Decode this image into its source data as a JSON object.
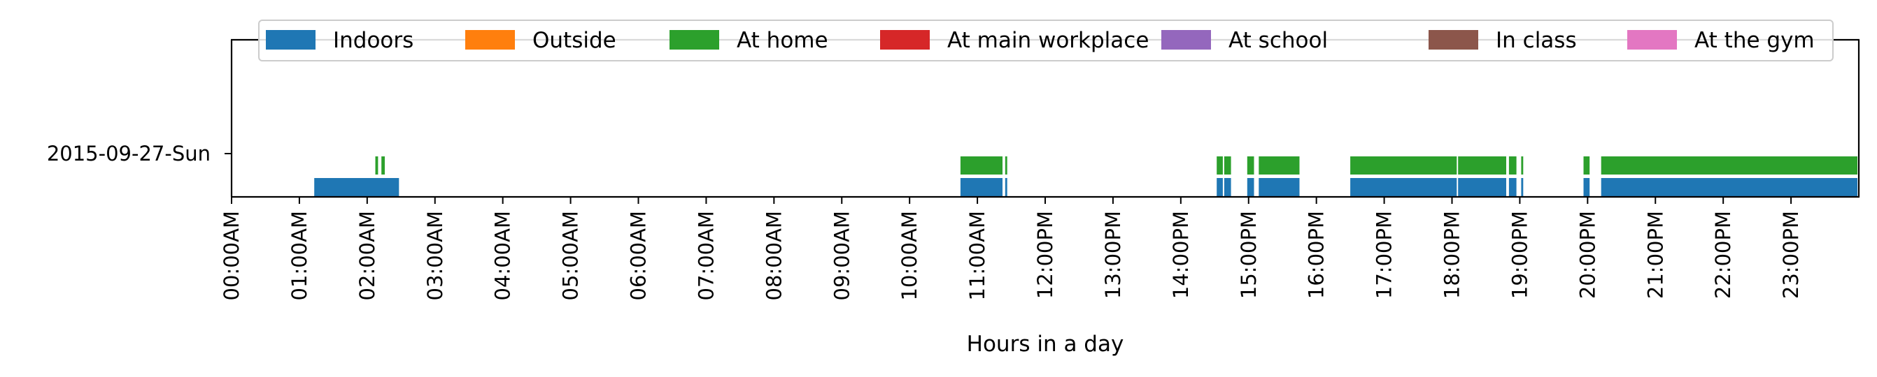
{
  "chart_data": {
    "type": "timeline",
    "title": "",
    "xlabel": "Hours in a day",
    "ylabel": "",
    "xlim": [
      0,
      24
    ],
    "x_ticks": [
      {
        "hour": 0,
        "label": "00:00AM"
      },
      {
        "hour": 1,
        "label": "01:00AM"
      },
      {
        "hour": 2,
        "label": "02:00AM"
      },
      {
        "hour": 3,
        "label": "03:00AM"
      },
      {
        "hour": 4,
        "label": "04:00AM"
      },
      {
        "hour": 5,
        "label": "05:00AM"
      },
      {
        "hour": 6,
        "label": "06:00AM"
      },
      {
        "hour": 7,
        "label": "07:00AM"
      },
      {
        "hour": 8,
        "label": "08:00AM"
      },
      {
        "hour": 9,
        "label": "09:00AM"
      },
      {
        "hour": 10,
        "label": "10:00AM"
      },
      {
        "hour": 11,
        "label": "11:00AM"
      },
      {
        "hour": 12,
        "label": "12:00PM"
      },
      {
        "hour": 13,
        "label": "13:00PM"
      },
      {
        "hour": 14,
        "label": "14:00PM"
      },
      {
        "hour": 15,
        "label": "15:00PM"
      },
      {
        "hour": 16,
        "label": "16:00PM"
      },
      {
        "hour": 17,
        "label": "17:00PM"
      },
      {
        "hour": 18,
        "label": "18:00PM"
      },
      {
        "hour": 19,
        "label": "19:00PM"
      },
      {
        "hour": 20,
        "label": "20:00PM"
      },
      {
        "hour": 21,
        "label": "21:00PM"
      },
      {
        "hour": 22,
        "label": "22:00PM"
      },
      {
        "hour": 23,
        "label": "23:00PM"
      }
    ],
    "y_categories": [
      "2015-09-27-Sun"
    ],
    "legend_position": "top",
    "legend": [
      {
        "label": "Indoors",
        "color": "#1f77b4"
      },
      {
        "label": "Outside",
        "color": "#ff7f0e"
      },
      {
        "label": "At home",
        "color": "#2ca02c"
      },
      {
        "label": "At main workplace",
        "color": "#d62728"
      },
      {
        "label": "At school",
        "color": "#9467bd"
      },
      {
        "label": "In class",
        "color": "#8c564b"
      },
      {
        "label": "At the gym",
        "color": "#e377c2"
      }
    ],
    "series": [
      {
        "name": "Indoors",
        "color": "#1f77b4",
        "day": "2015-09-27-Sun",
        "intervals": [
          [
            1.22,
            2.47
          ],
          [
            10.75,
            11.37
          ],
          [
            11.41,
            11.44
          ],
          [
            14.53,
            14.62
          ],
          [
            14.64,
            14.74
          ],
          [
            14.98,
            15.08
          ],
          [
            15.15,
            15.75
          ],
          [
            16.5,
            18.07
          ],
          [
            18.09,
            18.8
          ],
          [
            18.84,
            18.95
          ],
          [
            19.02,
            19.05
          ],
          [
            19.94,
            20.03
          ],
          [
            20.2,
            23.98
          ]
        ]
      },
      {
        "name": "At home",
        "color": "#2ca02c",
        "day": "2015-09-27-Sun",
        "intervals": [
          [
            2.12,
            2.16
          ],
          [
            2.21,
            2.26
          ],
          [
            10.75,
            11.37
          ],
          [
            11.41,
            11.44
          ],
          [
            14.53,
            14.62
          ],
          [
            14.64,
            14.74
          ],
          [
            14.98,
            15.08
          ],
          [
            15.15,
            15.75
          ],
          [
            16.5,
            18.07
          ],
          [
            18.09,
            18.8
          ],
          [
            18.84,
            18.95
          ],
          [
            19.02,
            19.05
          ],
          [
            19.94,
            20.03
          ],
          [
            20.2,
            23.98
          ]
        ]
      }
    ]
  }
}
